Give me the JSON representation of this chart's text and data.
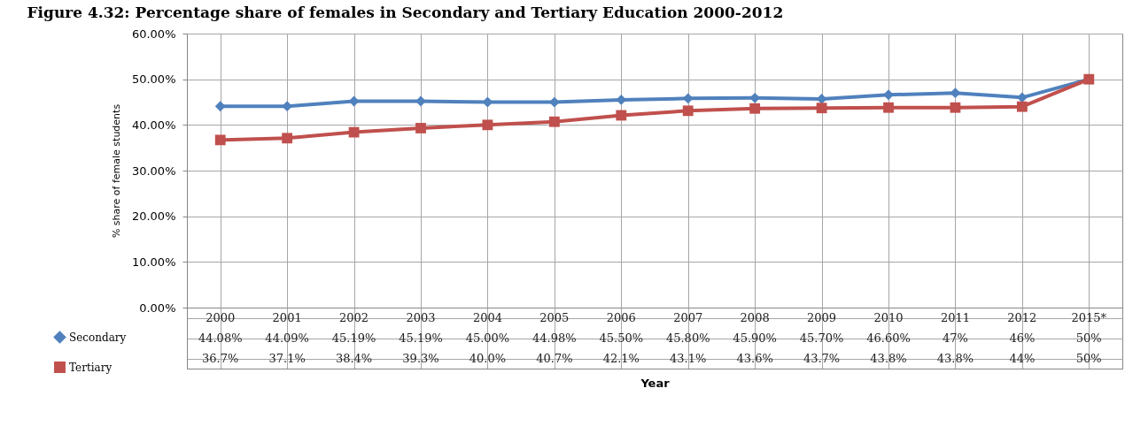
{
  "chart_data": {
    "type": "line",
    "title": "Figure 4.32: Percentage share of females in Secondary and Tertiary Education 2000-2012",
    "xlabel": "Year",
    "ylabel": "% share of female students",
    "categories": [
      "2000",
      "2001",
      "2002",
      "2003",
      "2004",
      "2005",
      "2006",
      "2007",
      "2008",
      "2009",
      "2010",
      "2011",
      "2012",
      "2015*"
    ],
    "series": [
      {
        "name": "Secondary",
        "color": "#4f81bd",
        "marker": "diamond",
        "values": [
          44.08,
          44.09,
          45.19,
          45.19,
          45.0,
          44.98,
          45.5,
          45.8,
          45.9,
          45.7,
          46.6,
          47,
          46,
          50
        ],
        "value_labels": [
          "44.08%",
          "44.09%",
          "45.19%",
          "45.19%",
          "45.00%",
          "44.98%",
          "45.50%",
          "45.80%",
          "45.90%",
          "45.70%",
          "46.60%",
          "47%",
          "46%",
          "50%"
        ]
      },
      {
        "name": "Tertiary",
        "color": "#c0504d",
        "marker": "square",
        "values": [
          36.7,
          37.1,
          38.4,
          39.3,
          40.0,
          40.7,
          42.1,
          43.1,
          43.6,
          43.7,
          43.8,
          43.8,
          44,
          50
        ],
        "value_labels": [
          "36.7%",
          "37.1%",
          "38.4%",
          "39.3%",
          "40.0%",
          "40.7%",
          "42.1%",
          "43.1%",
          "43.6%",
          "43.7%",
          "43.8%",
          "43.8%",
          "44%",
          "50%"
        ]
      }
    ],
    "ylim": [
      0,
      60
    ],
    "yticks": [
      {
        "value": 0,
        "label": "0.00%"
      },
      {
        "value": 10,
        "label": "10.00%"
      },
      {
        "value": 20,
        "label": "20.00%"
      },
      {
        "value": 30,
        "label": "30.00%"
      },
      {
        "value": 40,
        "label": "40.00%"
      },
      {
        "value": 50,
        "label": "50.00%"
      },
      {
        "value": 60,
        "label": "60.00%"
      }
    ],
    "grid": true,
    "legend": "bottom left",
    "line_style": "solid"
  }
}
